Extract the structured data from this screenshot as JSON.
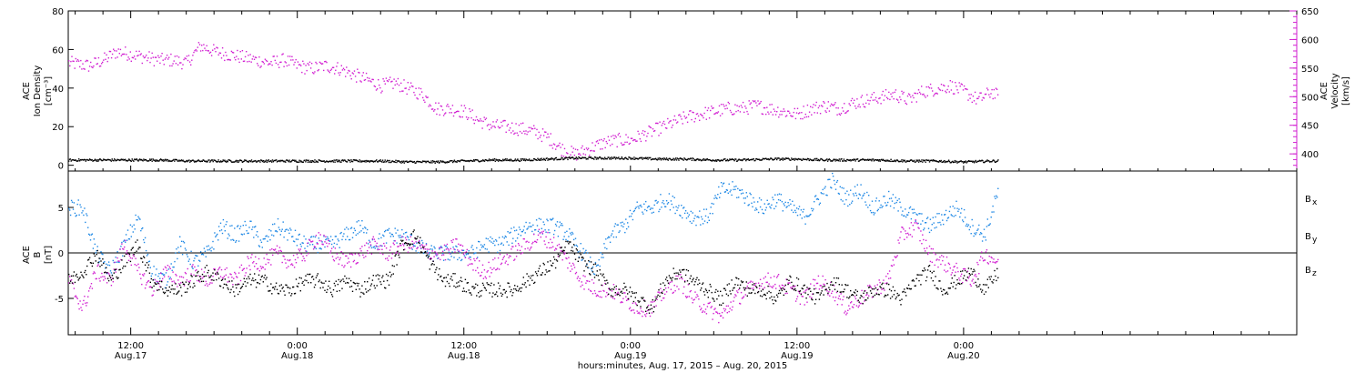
{
  "colors": {
    "black": "#000000",
    "magenta": "#d11fd1",
    "blue": "#1e88e5"
  },
  "xlabel": "hours:minutes, Aug. 17, 2015 – Aug. 20, 2015",
  "x_range_hours": [
    7.5,
    96
  ],
  "x_ticks": [
    {
      "h": 12,
      "time": "12:00",
      "date": "Aug.17"
    },
    {
      "h": 24,
      "time": "0:00",
      "date": "Aug.18"
    },
    {
      "h": 36,
      "time": "12:00",
      "date": "Aug.18"
    },
    {
      "h": 48,
      "time": "0:00",
      "date": "Aug.19"
    },
    {
      "h": 60,
      "time": "12:00",
      "date": "Aug.19"
    },
    {
      "h": 72,
      "time": "0:00",
      "date": "Aug.20"
    }
  ],
  "chart_data": [
    {
      "type": "scatter",
      "panel": "top",
      "ylabel_left": [
        "ACE",
        "Ion Density",
        "[cm⁻³]"
      ],
      "ylabel_right": [
        "ACE",
        "Velocity",
        "[km/s]"
      ],
      "ylim_left": [
        -3,
        80
      ],
      "ylim_right": [
        370,
        650
      ],
      "yticks_left": [
        0,
        20,
        40,
        60,
        80
      ],
      "yticks_right": [
        400,
        450,
        500,
        550,
        600,
        650
      ],
      "series": [
        {
          "axis": "left",
          "color": "#000000",
          "x": [
            7.5,
            10,
            12,
            14,
            16,
            18,
            20,
            22,
            24,
            26,
            28,
            30,
            32,
            34,
            36,
            38,
            40,
            42,
            44,
            46,
            48,
            50,
            52,
            54,
            56,
            58,
            60,
            62,
            64,
            66,
            68,
            70,
            72,
            74,
            74.5
          ],
          "y": [
            3,
            3,
            3,
            3,
            2.5,
            2.5,
            2.5,
            2.5,
            2.5,
            2.5,
            2.5,
            2.5,
            2,
            2,
            2.5,
            3,
            3,
            3.5,
            4,
            4,
            4,
            3.5,
            3.5,
            3,
            3,
            3.5,
            3.5,
            3,
            3,
            3,
            2.5,
            2.5,
            2,
            2.5,
            2.5
          ]
        },
        {
          "axis": "right",
          "color": "#d11fd1",
          "x": [
            7.5,
            9,
            10,
            11,
            12,
            13,
            14,
            15,
            16,
            17,
            18,
            19,
            20,
            21,
            22,
            23,
            24,
            25,
            26,
            27,
            28,
            29,
            30,
            31,
            32,
            33,
            34,
            35,
            36,
            37,
            38,
            39,
            40,
            41,
            42,
            43,
            44,
            45,
            46,
            47,
            48,
            49,
            50,
            51,
            52,
            53,
            54,
            55,
            56,
            57,
            58,
            59,
            60,
            61,
            62,
            63,
            64,
            65,
            66,
            67,
            68,
            69,
            70,
            71,
            72,
            73,
            74,
            74.5
          ],
          "y": [
            560,
            555,
            565,
            580,
            575,
            570,
            565,
            565,
            560,
            590,
            580,
            575,
            570,
            565,
            560,
            565,
            555,
            550,
            555,
            550,
            540,
            530,
            520,
            525,
            515,
            505,
            480,
            480,
            475,
            460,
            450,
            448,
            445,
            440,
            430,
            410,
            400,
            410,
            420,
            425,
            425,
            435,
            445,
            455,
            465,
            470,
            475,
            480,
            480,
            485,
            480,
            475,
            470,
            480,
            485,
            480,
            490,
            495,
            500,
            505,
            495,
            510,
            515,
            520,
            510,
            495,
            510,
            500
          ]
        }
      ]
    },
    {
      "type": "scatter",
      "panel": "bottom",
      "ylabel": [
        "ACE",
        "B",
        "[nT]"
      ],
      "ylim": [
        -9,
        9
      ],
      "yticks": [
        -5,
        0,
        5
      ],
      "legend": [
        {
          "label": "B",
          "sub": "x",
          "color": "#000000"
        },
        {
          "label": "B",
          "sub": "y",
          "color": "#1e88e5"
        },
        {
          "label": "B",
          "sub": "z",
          "color": "#d11fd1"
        }
      ],
      "series": [
        {
          "name": "Bx",
          "color": "#000000",
          "x": [
            7.5,
            8.5,
            9.5,
            10.5,
            11.5,
            12.5,
            13.5,
            14.5,
            15.5,
            16.5,
            17.5,
            18.5,
            19.5,
            20.5,
            21.5,
            22.5,
            23.5,
            24.5,
            25.5,
            26.5,
            27.5,
            28.5,
            29.5,
            30.5,
            31.5,
            32.5,
            33.5,
            34.5,
            35.5,
            36.5,
            37.5,
            38.5,
            39.5,
            40.5,
            41.5,
            42.5,
            43.5,
            44.5,
            45.5,
            46.5,
            47.5,
            48.5,
            49.5,
            50.5,
            51.5,
            52.5,
            53.5,
            54.5,
            55.5,
            56.5,
            57.5,
            58.5,
            59.5,
            60.5,
            61.5,
            62.5,
            63.5,
            64.5,
            65.5,
            66.5,
            67.5,
            68.5,
            69.5,
            70.5,
            71.5,
            72.5,
            73.5,
            74.5
          ],
          "y": [
            -3,
            -2,
            0,
            -3,
            -1,
            1,
            -3,
            -4,
            -4,
            -3,
            -2,
            -3,
            -4,
            -3,
            -3,
            -4,
            -4,
            -3,
            -3,
            -4,
            -3,
            -4,
            -3,
            -3,
            1,
            2,
            -1,
            -3,
            -3,
            -4,
            -4,
            -4,
            -4,
            -3,
            -2,
            -1,
            1,
            -1,
            -2,
            -4,
            -4,
            -5,
            -6,
            -3,
            -2,
            -3,
            -4,
            -5,
            -3,
            -4,
            -4,
            -5,
            -3,
            -4,
            -5,
            -3,
            -4,
            -5,
            -4,
            -4,
            -5,
            -3,
            -2,
            -4,
            -3,
            -2,
            -4,
            -2
          ]
        },
        {
          "name": "By",
          "color": "#1e88e5",
          "x": [
            7.5,
            8.5,
            9.5,
            10.5,
            11.5,
            12.5,
            13.5,
            14.5,
            15.5,
            16.5,
            17.5,
            18.5,
            19.5,
            20.5,
            21.5,
            22.5,
            23.5,
            24.5,
            25.5,
            26.5,
            27.5,
            28.5,
            29.5,
            30.5,
            31.5,
            32.5,
            33.5,
            34.5,
            35.5,
            36.5,
            37.5,
            38.5,
            39.5,
            40.5,
            41.5,
            42.5,
            43.5,
            44.5,
            45.5,
            46.5,
            47.5,
            48.5,
            49.5,
            50.5,
            51.5,
            52.5,
            53.5,
            54.5,
            55.5,
            56.5,
            57.5,
            58.5,
            59.5,
            60.5,
            61.5,
            62.5,
            63.5,
            64.5,
            65.5,
            66.5,
            67.5,
            68.5,
            69.5,
            70.5,
            71.5,
            72.5,
            73.5,
            74.5
          ],
          "y": [
            5,
            5,
            0,
            -2,
            1,
            4,
            -2,
            -3,
            1,
            -1,
            0,
            3,
            2,
            3,
            1,
            3,
            2,
            1,
            1,
            1,
            2,
            3,
            1,
            2,
            2,
            1,
            0,
            0,
            0,
            0,
            1,
            1,
            2,
            3,
            3,
            3,
            2,
            0,
            -2,
            2,
            3,
            5,
            5,
            6,
            5,
            4,
            4,
            7,
            7,
            6,
            5,
            6,
            5,
            4,
            6,
            8,
            6,
            7,
            5,
            6,
            5,
            4,
            3,
            4,
            5,
            3,
            2,
            7
          ]
        },
        {
          "name": "Bz",
          "color": "#d11fd1",
          "x": [
            7.5,
            8.5,
            9.5,
            10.5,
            11.5,
            12.5,
            13.5,
            14.5,
            15.5,
            16.5,
            17.5,
            18.5,
            19.5,
            20.5,
            21.5,
            22.5,
            23.5,
            24.5,
            25.5,
            26.5,
            27.5,
            28.5,
            29.5,
            30.5,
            31.5,
            32.5,
            33.5,
            34.5,
            35.5,
            36.5,
            37.5,
            38.5,
            39.5,
            40.5,
            41.5,
            42.5,
            43.5,
            44.5,
            45.5,
            46.5,
            47.5,
            48.5,
            49.5,
            50.5,
            51.5,
            52.5,
            53.5,
            54.5,
            55.5,
            56.5,
            57.5,
            58.5,
            59.5,
            60.5,
            61.5,
            62.5,
            63.5,
            64.5,
            65.5,
            66.5,
            67.5,
            68.5,
            69.5,
            70.5,
            71.5,
            72.5,
            73.5,
            74.5
          ],
          "y": [
            -3,
            -6,
            -2,
            -3,
            1,
            -2,
            -4,
            -2,
            -3,
            -2,
            -3,
            -2,
            -3,
            -1,
            -1,
            0,
            -1,
            0,
            2,
            0,
            -1,
            0,
            1,
            0,
            1,
            1,
            0,
            0,
            1,
            -1,
            -2,
            -1,
            0,
            1,
            2,
            1,
            -1,
            -3,
            -4,
            -4,
            -5,
            -6,
            -6,
            -4,
            -3,
            -5,
            -6,
            -7,
            -5,
            -4,
            -3,
            -3,
            -4,
            -5,
            -3,
            -4,
            -6,
            -5,
            -4,
            -3,
            2,
            3,
            0,
            -1,
            -2,
            -3,
            0,
            -1
          ]
        }
      ]
    }
  ]
}
